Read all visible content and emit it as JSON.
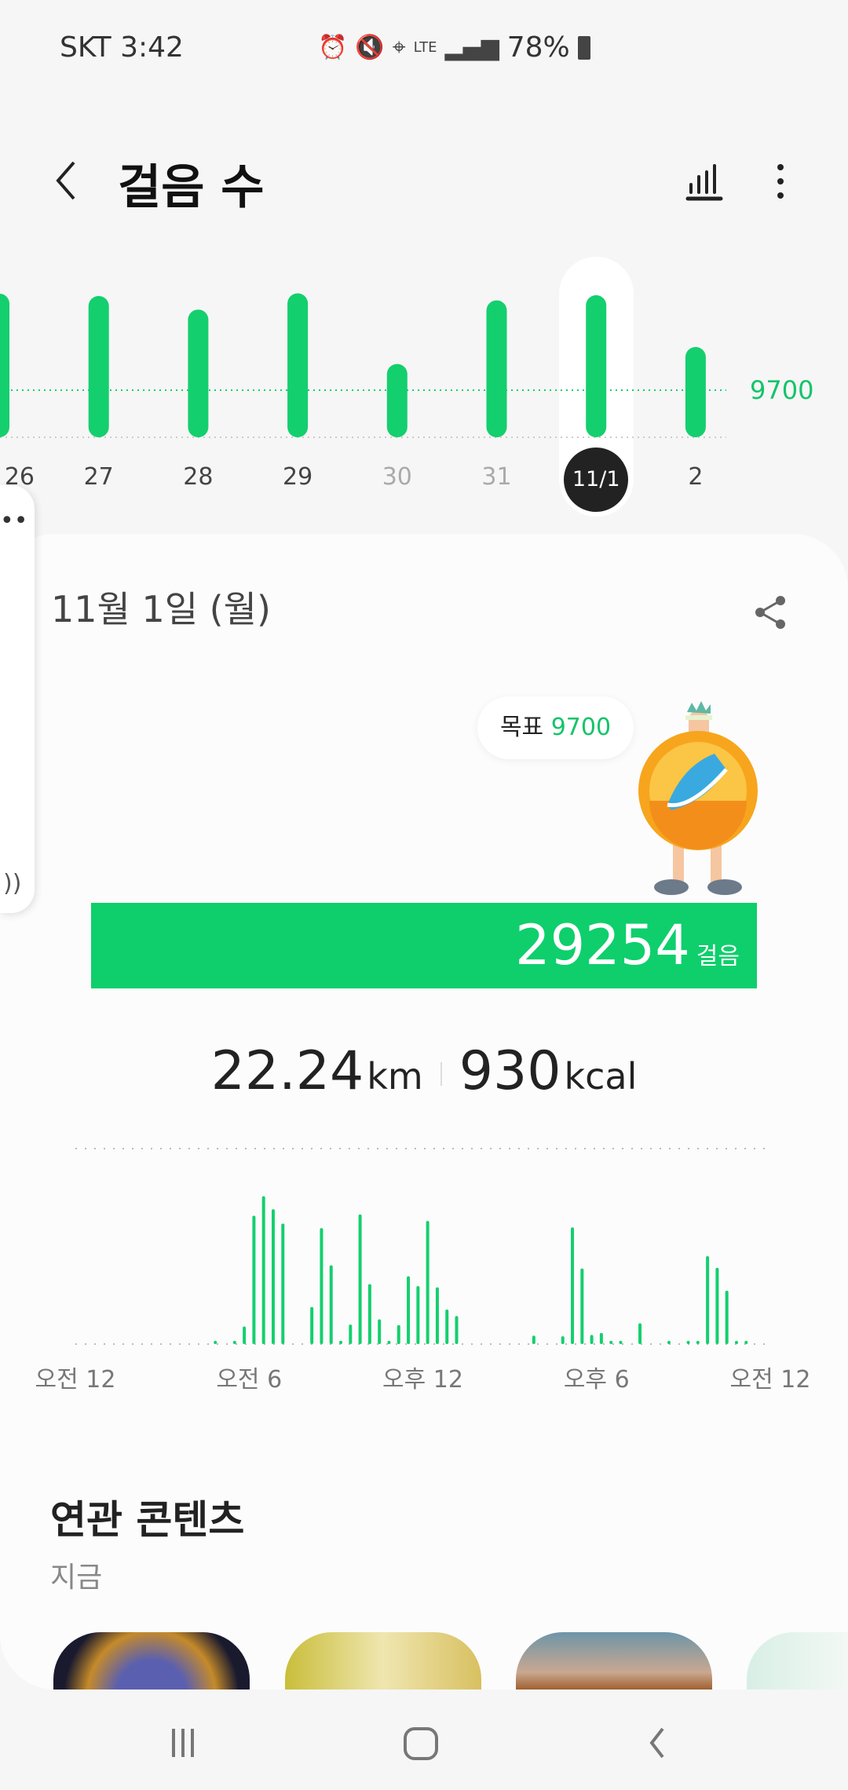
{
  "status_bar": {
    "carrier_time": "SKT 3:42",
    "icons": [
      "alarm-icon",
      "vibrate-icon",
      "location-icon",
      "lte-icon",
      "signal-icon"
    ],
    "battery": "78%"
  },
  "header": {
    "title": "걸음 수",
    "icons": [
      "back-icon",
      "chart-icon",
      "more-icon"
    ]
  },
  "weekly_chart": {
    "type": "bar",
    "categories": [
      "26",
      "27",
      "28",
      "29",
      "30",
      "31",
      "11/1",
      "2"
    ],
    "values": [
      29600,
      29100,
      26300,
      29650,
      15100,
      28200,
      29254,
      18600
    ],
    "muted_labels": [
      "30",
      "31"
    ],
    "selected": "11/1",
    "goal": 9700,
    "goal_label": "9700",
    "color": "#14cf6e"
  },
  "detail": {
    "date": "11월 1일 (월)",
    "goal_prefix": "목표",
    "goal_value": "9700",
    "steps": "29254",
    "steps_unit": "걸음",
    "goal_progress": 3.016,
    "distance": "22.24",
    "distance_unit": "km",
    "calories": "930",
    "calories_unit": "kcal"
  },
  "chart_data": {
    "type": "bar",
    "x_interval_minutes": 20,
    "values": [
      0,
      0,
      0,
      0,
      0,
      0,
      0,
      0,
      0,
      0,
      0,
      0,
      0,
      0,
      50,
      0,
      50,
      270,
      1970,
      2270,
      2070,
      1850,
      0,
      0,
      570,
      1780,
      1210,
      50,
      300,
      1990,
      920,
      380,
      50,
      290,
      1040,
      890,
      1890,
      870,
      530,
      430,
      0,
      0,
      0,
      0,
      0,
      0,
      0,
      130,
      0,
      0,
      120,
      1790,
      1160,
      140,
      170,
      50,
      50,
      0,
      320,
      0,
      0,
      50,
      0,
      50,
      50,
      1350,
      1170,
      820,
      50,
      50,
      0,
      0
    ],
    "x_tick_labels": [
      "오전 12",
      "오전 6",
      "오후 12",
      "오후 6",
      "오전 12"
    ],
    "ylim": [
      0,
      3000
    ],
    "grid": "dotted top and baseline",
    "color": "#14cf6e"
  },
  "related": {
    "title": "연관 콘텐츠",
    "subtitle": "지금"
  },
  "nav": {
    "icons": [
      "recent-apps-icon",
      "home-icon",
      "back-icon"
    ]
  }
}
